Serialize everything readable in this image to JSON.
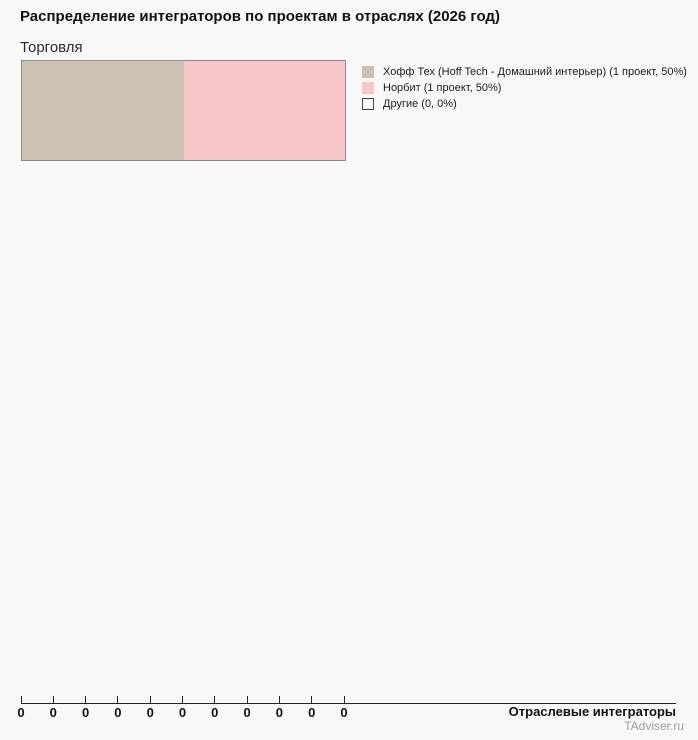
{
  "title": "Распределение интеграторов по проектам в отраслях (2026 год)",
  "subtitle": "Торговля",
  "chart_data": {
    "type": "bar",
    "stacked": true,
    "orientation": "horizontal",
    "title": "Распределение интеграторов по проектам в отраслях (2026 год)",
    "subtitle": "Торговля",
    "categories": [
      "Торговля"
    ],
    "series": [
      {
        "name": "Хофф Тех (Hoff Tech - Домашний интерьер)",
        "projects": 1,
        "percent": 50,
        "color": "#cbc2b3"
      },
      {
        "name": "Норбит",
        "projects": 1,
        "percent": 50,
        "color": "#f9c7ca"
      },
      {
        "name": "Другие",
        "projects": 0,
        "percent": 0,
        "color": "#ffffff"
      }
    ],
    "xlabel": "Отраслевые интеграторы",
    "ylabel": "",
    "x_tick_labels": [
      "0",
      "0",
      "0",
      "0",
      "0",
      "0",
      "0",
      "0",
      "0",
      "0",
      "0"
    ],
    "xlim": [
      0,
      0
    ],
    "grid": false,
    "legend_position": "right"
  },
  "legend": {
    "items": [
      {
        "label": "Хофф Тех (Hoff Tech - Домашний интерьер) (1 проект, 50%)",
        "color": "#cbc2b3",
        "border": "#cbc2b3"
      },
      {
        "label": "Норбит (1 проект, 50%)",
        "color": "#f9c7ca",
        "border": "#f9c7ca"
      },
      {
        "label": "Другие (0, 0%)",
        "color": "#ffffff",
        "border": "#444444"
      }
    ]
  },
  "footer": {
    "axis_label": "Отраслевые интеграторы",
    "watermark": "TAdviser.ru"
  },
  "colors": {
    "background": "#f9f9f9",
    "bar_border": "#8c8c8c",
    "axis": "#222222",
    "text": "#111111",
    "watermark": "#9a9a9a"
  },
  "layout_numbers": {
    "tick_count": 11
  }
}
